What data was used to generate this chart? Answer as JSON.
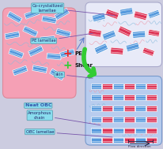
{
  "bg_color": "#cccce0",
  "left_box_color": "#f5a0b5",
  "left_box_ec": "#dd8899",
  "right_top_box_color": "#e8eaf8",
  "right_top_box_ec": "#aaaacc",
  "right_bot_box_color": "#b8ccee",
  "right_bot_box_ec": "#7799cc",
  "label_co_crystal": "Co-crystallized\nlamellae",
  "label_pe_lamellar": "PE lamellae",
  "label_pe": "PE",
  "label_shear": "Shear",
  "label_skin": "skin",
  "label_amorphous": "Amorphous\nchain",
  "label_obc_lam": "OBC lamellae",
  "label_neat_obc": "Neat OBC",
  "label_flow": "Flow direction",
  "green_arrow_color": "#33cc33",
  "cross_red_color": "#ee2222",
  "cross_green_color": "#33cc33",
  "blue_color": "#5599dd",
  "red_color": "#dd3355",
  "pink_chain": "#ee99aa",
  "lblue_chain": "#88bbdd",
  "callout_bg": "#88ddee",
  "callout_ec": "#5599aa",
  "callout_text": "#222266",
  "label_fontsize": 4.5,
  "callout_fontsize": 3.8
}
